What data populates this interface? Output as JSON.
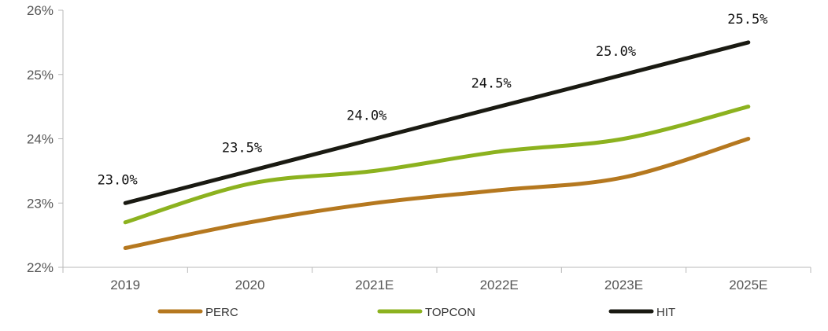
{
  "chart_data": {
    "type": "line",
    "categories": [
      "2019",
      "2020",
      "2021E",
      "2022E",
      "2023E",
      "2025E"
    ],
    "y_ticks": [
      "22%",
      "23%",
      "24%",
      "25%",
      "26%"
    ],
    "ylim": [
      22,
      26
    ],
    "series": [
      {
        "name": "PERC",
        "values": [
          22.3,
          22.7,
          23.0,
          23.2,
          23.4,
          24.0
        ],
        "color": "#b5781f"
      },
      {
        "name": "TOPCON",
        "values": [
          22.7,
          23.3,
          23.5,
          23.8,
          24.0,
          24.5
        ],
        "color": "#8cb21f"
      },
      {
        "name": "HIT",
        "values": [
          23.0,
          23.5,
          24.0,
          24.5,
          25.0,
          25.5
        ],
        "color": "#1a1a12"
      }
    ],
    "data_labels": {
      "series": "HIT",
      "labels": [
        "23.0%",
        "23.5%",
        "24.0%",
        "24.5%",
        "25.0%",
        "25.5%"
      ]
    },
    "legend_position": "bottom",
    "grid": false
  }
}
